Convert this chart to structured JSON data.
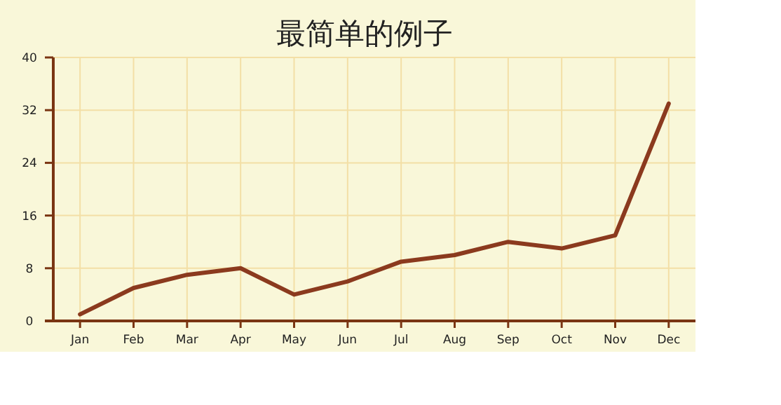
{
  "chart_data": {
    "type": "line",
    "title": "最简单的例子",
    "categories": [
      "Jan",
      "Feb",
      "Mar",
      "Apr",
      "May",
      "Jun",
      "Jul",
      "Aug",
      "Sep",
      "Oct",
      "Nov",
      "Dec"
    ],
    "series": [
      {
        "color": "#8b3a1e",
        "values": [
          1,
          5,
          7,
          8,
          4,
          6,
          9,
          10,
          12,
          11,
          13,
          33
        ]
      }
    ],
    "ylim": [
      0,
      40
    ],
    "yticks": [
      0,
      8,
      16,
      24,
      32,
      40
    ],
    "grid": true,
    "marker": "none",
    "line_style": "solid"
  }
}
